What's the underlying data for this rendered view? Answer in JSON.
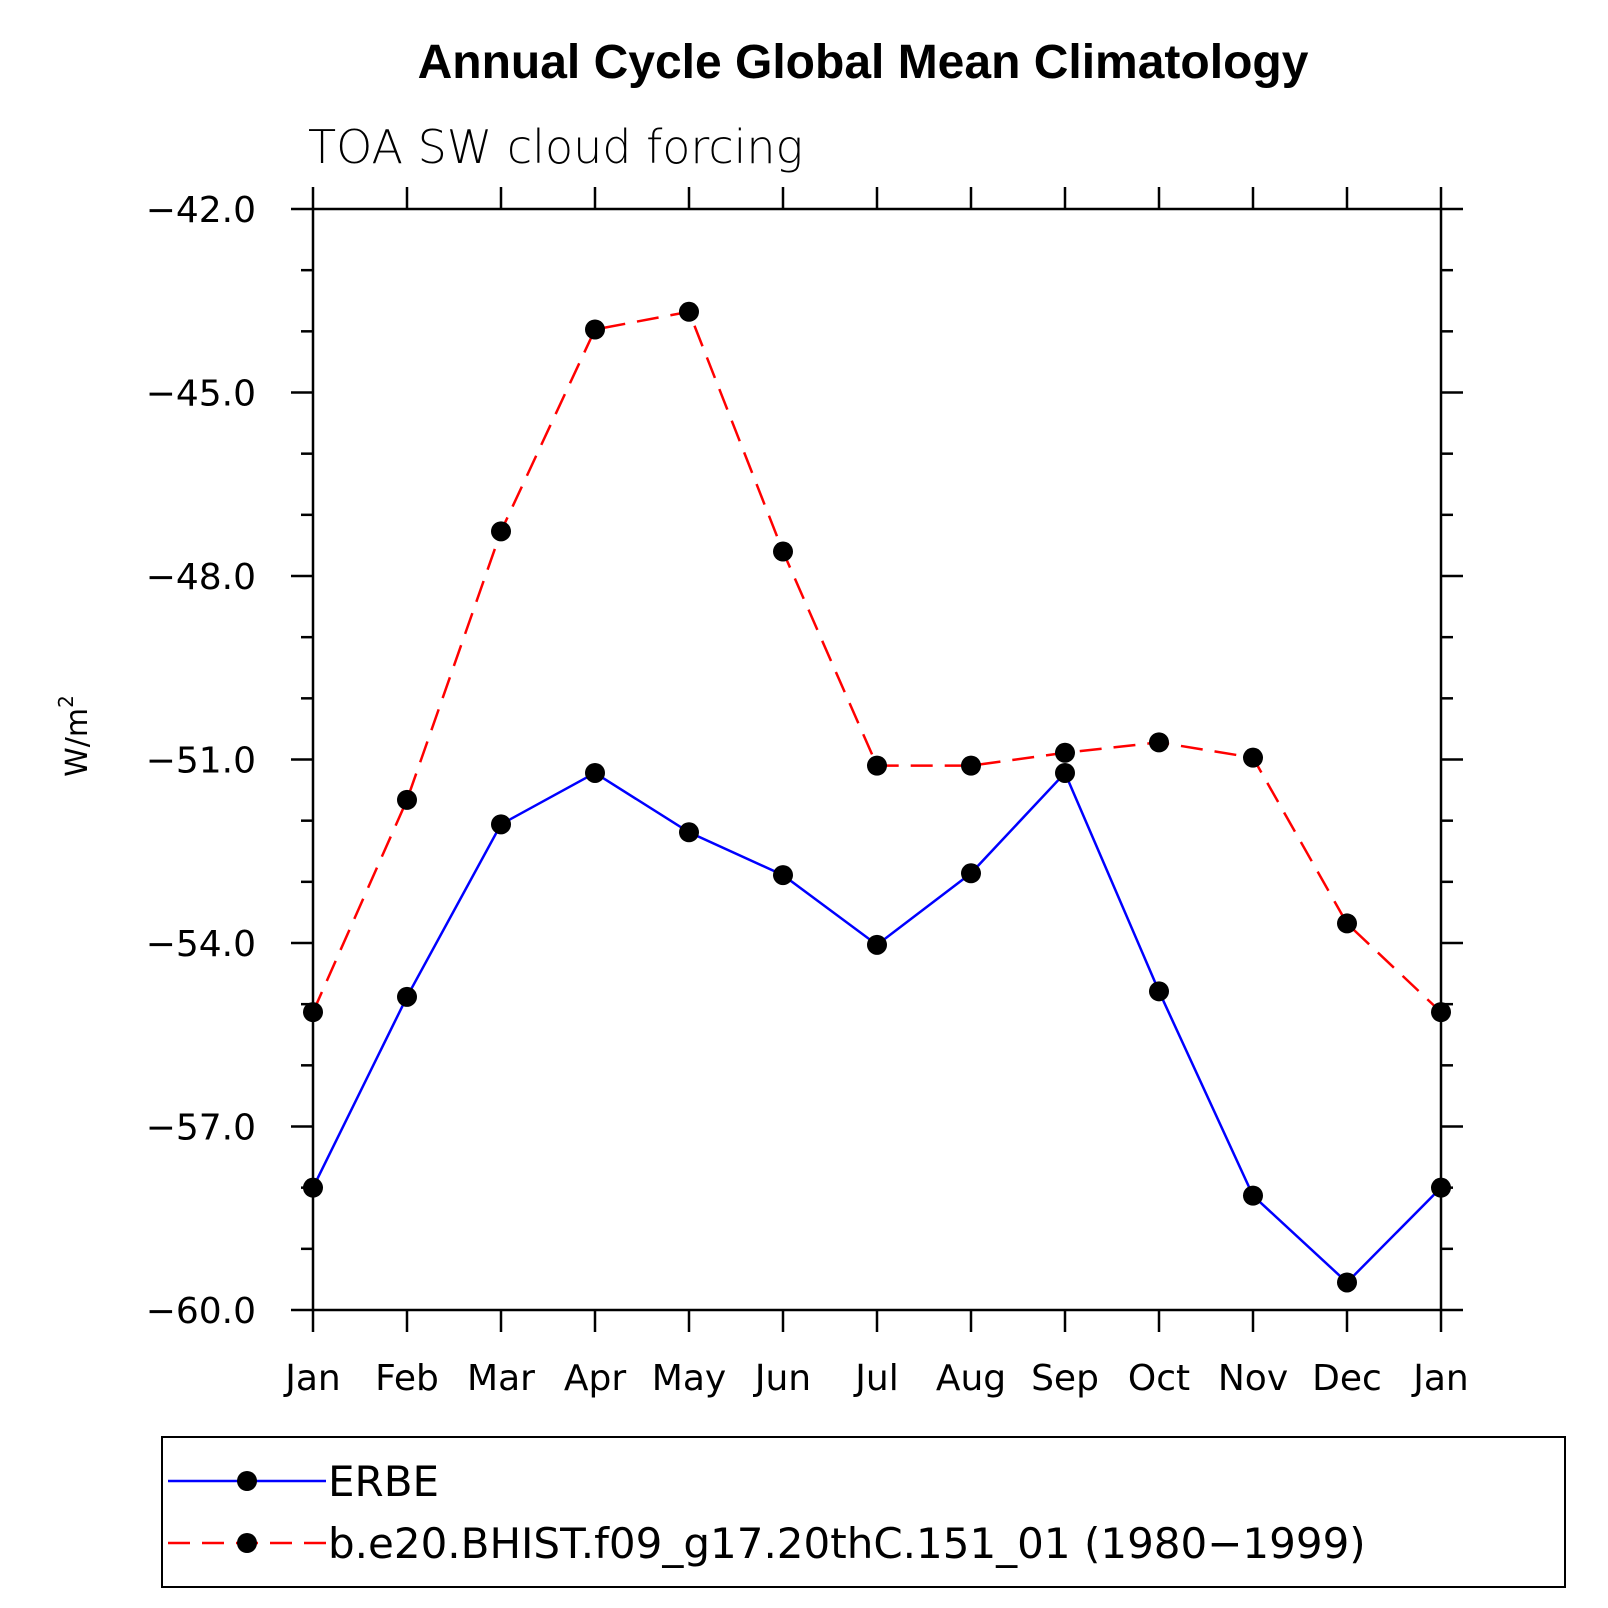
{
  "chart_data": {
    "type": "line",
    "title": "Annual Cycle Global Mean Climatology",
    "subtitle": "TOA SW cloud forcing",
    "ylabel": "W/m",
    "ylabel_superscript": "2",
    "xlabel": "",
    "categories": [
      "Jan",
      "Feb",
      "Mar",
      "Apr",
      "May",
      "Jun",
      "Jul",
      "Aug",
      "Sep",
      "Oct",
      "Nov",
      "Dec",
      "Jan"
    ],
    "ylim": [
      -60.0,
      -42.0
    ],
    "yticks": [
      "-42.0",
      "-45.0",
      "-48.0",
      "-51.0",
      "-54.0",
      "-57.0",
      "-60.0"
    ],
    "ytick_values": [
      -42,
      -45,
      -48,
      -51,
      -54,
      -57,
      -60
    ],
    "series": [
      {
        "name": "ERBE",
        "color": "#0000ff",
        "dash": "solid",
        "values": [
          -58.0,
          -54.88,
          -52.06,
          -51.22,
          -52.19,
          -52.89,
          -54.03,
          -52.86,
          -51.22,
          -54.79,
          -58.13,
          -59.55,
          -58.0
        ]
      },
      {
        "name": "b.e20.BHIST.f09_g17.20thC.151_01 (1980−1999)",
        "color": "#ff0000",
        "dash": "dashed",
        "values": [
          -55.13,
          -51.66,
          -47.27,
          -43.97,
          -43.68,
          -47.6,
          -51.1,
          -51.1,
          -50.89,
          -50.72,
          -50.97,
          -53.68,
          -55.13
        ]
      }
    ],
    "legend": [
      "ERBE",
      "b.e20.BHIST.f09_g17.20thC.151_01 (1980−1999)"
    ],
    "legend_position": "bottom",
    "grid": false
  }
}
